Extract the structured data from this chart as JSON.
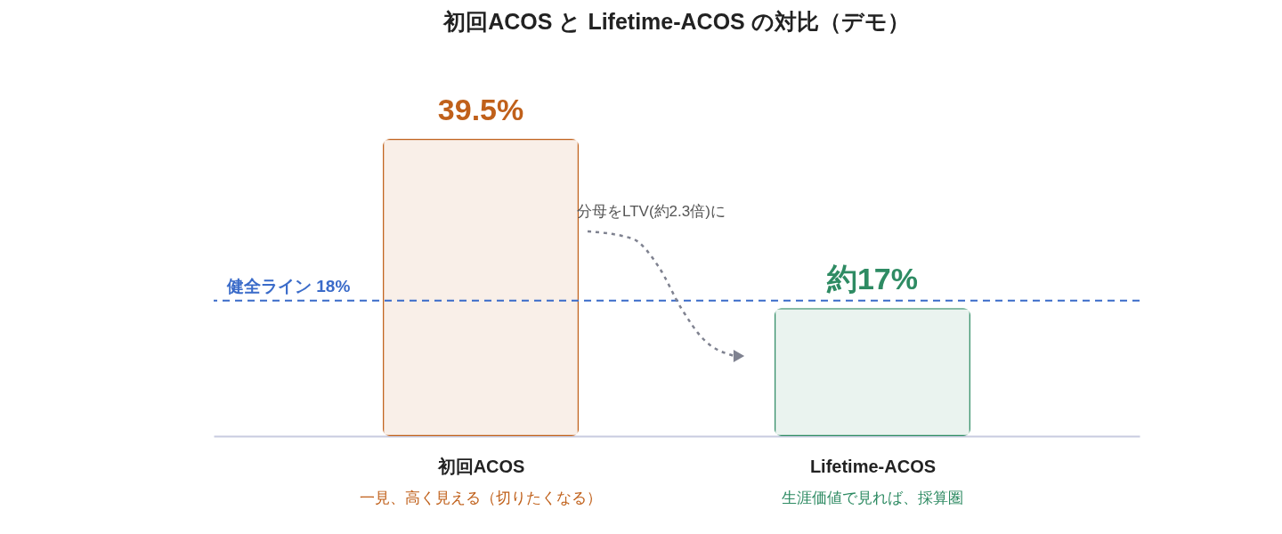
{
  "chart_data": {
    "type": "bar",
    "title": "初回ACOS と Lifetime-ACOS の対比（デモ）",
    "categories": [
      "初回ACOS",
      "Lifetime-ACOS"
    ],
    "values": [
      39.5,
      17
    ],
    "colors": [
      "#c0601a",
      "#2e8b63"
    ],
    "value_labels": [
      "39.5%",
      "約17%"
    ],
    "ref_lines": [
      {
        "axis": "y",
        "value": 18,
        "label": "健全ライン 18%",
        "color": "#3a6bc9",
        "line_style": "dashed"
      }
    ],
    "annotations": [
      "分母をLTV(約2.3倍)に",
      "一見、高く見える（切りたくなる）",
      "生涯価値で見れば、採算圏"
    ],
    "grid": false
  }
}
